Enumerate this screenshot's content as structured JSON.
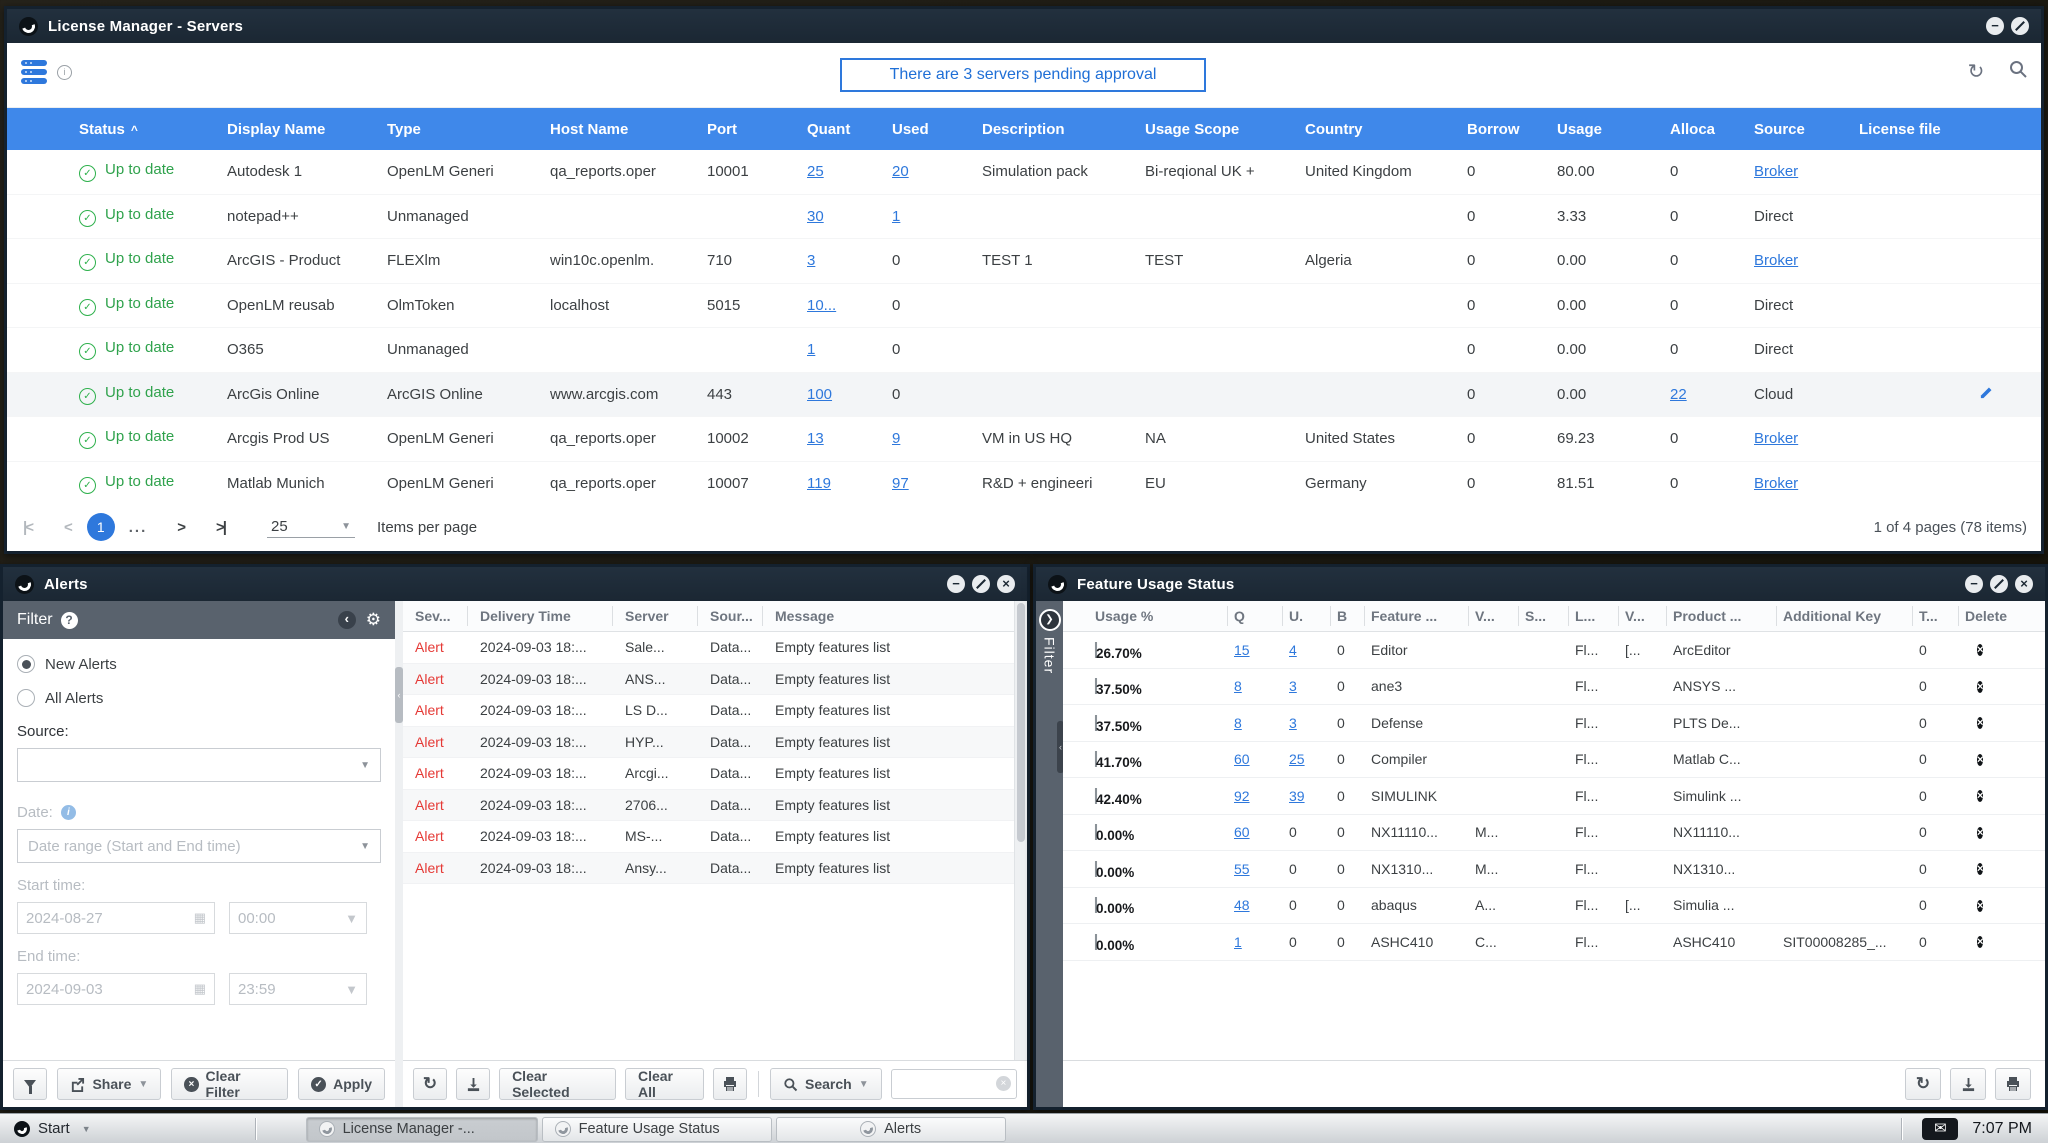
{
  "colors": {
    "header_blue": "#3f88ea",
    "link_blue": "#2e78dc",
    "ok_green": "#2fb14d",
    "alert_red": "#e53935",
    "usage_green": "#77d701"
  },
  "main_window": {
    "title": "License Manager - Servers",
    "banner": "There are 3 servers pending approval",
    "columns": [
      "Status",
      "Display Name",
      "Type",
      "Host Name",
      "Port",
      "Quant",
      "Used",
      "Description",
      "Usage Scope",
      "Country",
      "Borrow",
      "Usage",
      "Alloca",
      "Source",
      "License file"
    ],
    "rows": [
      {
        "status": "Up to date",
        "name": "Autodesk 1",
        "type": "OpenLM Generi",
        "host": "qa_reports.oper",
        "port": "10001",
        "quant": "25",
        "used": "20",
        "usedLink": true,
        "desc": "Simulation pack",
        "scope": "Bi-reqional UK +",
        "country": "United Kingdom",
        "borrow": "0",
        "usage": "80.00",
        "alloca": "0",
        "allocaLink": false,
        "source": "Broker",
        "sourceLink": true,
        "edit": false,
        "selected": false
      },
      {
        "status": "Up to date",
        "name": "notepad++",
        "type": "Unmanaged",
        "host": "",
        "port": "",
        "quant": "30",
        "used": "1",
        "usedLink": true,
        "desc": "",
        "scope": "",
        "country": "",
        "borrow": "0",
        "usage": "3.33",
        "alloca": "0",
        "allocaLink": false,
        "source": "Direct",
        "sourceLink": false,
        "edit": false,
        "selected": false
      },
      {
        "status": "Up to date",
        "name": "ArcGIS - Product",
        "type": "FLEXlm",
        "host": "win10c.openlm.",
        "port": "710",
        "quant": "3",
        "used": "0",
        "usedLink": false,
        "desc": "TEST 1",
        "scope": "TEST",
        "country": "Algeria",
        "borrow": "0",
        "usage": "0.00",
        "alloca": "0",
        "allocaLink": false,
        "source": "Broker",
        "sourceLink": true,
        "edit": false,
        "selected": false
      },
      {
        "status": "Up to date",
        "name": "OpenLM reusab",
        "type": "OlmToken",
        "host": "localhost",
        "port": "5015",
        "quant": "10...",
        "used": "0",
        "usedLink": false,
        "desc": "",
        "scope": "",
        "country": "",
        "borrow": "0",
        "usage": "0.00",
        "alloca": "0",
        "allocaLink": false,
        "source": "Direct",
        "sourceLink": false,
        "edit": false,
        "selected": false
      },
      {
        "status": "Up to date",
        "name": "O365",
        "type": "Unmanaged",
        "host": "",
        "port": "",
        "quant": "1",
        "used": "0",
        "usedLink": false,
        "desc": "",
        "scope": "",
        "country": "",
        "borrow": "0",
        "usage": "0.00",
        "alloca": "0",
        "allocaLink": false,
        "source": "Direct",
        "sourceLink": false,
        "edit": false,
        "selected": false
      },
      {
        "status": "Up to date",
        "name": "ArcGis Online",
        "type": "ArcGIS Online",
        "host": "www.arcgis.com",
        "port": "443",
        "quant": "100",
        "used": "0",
        "usedLink": false,
        "desc": "",
        "scope": "",
        "country": "",
        "borrow": "0",
        "usage": "0.00",
        "alloca": "22",
        "allocaLink": true,
        "source": "Cloud",
        "sourceLink": false,
        "edit": true,
        "selected": true
      },
      {
        "status": "Up to date",
        "name": "Arcgis Prod US",
        "type": "OpenLM Generi",
        "host": "qa_reports.oper",
        "port": "10002",
        "quant": "13",
        "used": "9",
        "usedLink": true,
        "desc": "VM in US HQ",
        "scope": "NA",
        "country": "United States",
        "borrow": "0",
        "usage": "69.23",
        "alloca": "0",
        "allocaLink": false,
        "source": "Broker",
        "sourceLink": true,
        "edit": false,
        "selected": false
      },
      {
        "status": "Up to date",
        "name": "Matlab Munich",
        "type": "OpenLM Generi",
        "host": "qa_reports.oper",
        "port": "10007",
        "quant": "119",
        "used": "97",
        "usedLink": true,
        "desc": "R&D + engineeri",
        "scope": "EU",
        "country": "Germany",
        "borrow": "0",
        "usage": "81.51",
        "alloca": "0",
        "allocaLink": false,
        "source": "Broker",
        "sourceLink": true,
        "edit": false,
        "selected": false
      }
    ],
    "pagination": {
      "page": "1",
      "ellipsis": "...",
      "per_page": "25",
      "per_page_label": "Items per page",
      "summary": "1 of 4 pages (78 items)"
    }
  },
  "alerts_window": {
    "title": "Alerts",
    "filter": {
      "header": "Filter",
      "new_alerts": "New Alerts",
      "all_alerts": "All Alerts",
      "source_label": "Source:",
      "date_label": "Date:",
      "range_placeholder": "Date range (Start and End time)",
      "start_label": "Start time:",
      "start_date": "2024-08-27",
      "start_time": "00:00",
      "end_label": "End time:",
      "end_date": "2024-09-03",
      "end_time": "23:59",
      "share": "Share",
      "clear_filter": "Clear Filter",
      "apply": "Apply"
    },
    "table": {
      "columns": [
        "Sev...",
        "Delivery Time",
        "Server",
        "Sour...",
        "Message"
      ],
      "rows": [
        {
          "sev": "Alert",
          "time": "2024-09-03 18:...",
          "server": "Sale...",
          "source": "Data...",
          "message": "Empty features list"
        },
        {
          "sev": "Alert",
          "time": "2024-09-03 18:...",
          "server": "ANS...",
          "source": "Data...",
          "message": "Empty features list"
        },
        {
          "sev": "Alert",
          "time": "2024-09-03 18:...",
          "server": "LS D...",
          "source": "Data...",
          "message": "Empty features list"
        },
        {
          "sev": "Alert",
          "time": "2024-09-03 18:...",
          "server": "HYP...",
          "source": "Data...",
          "message": "Empty features list"
        },
        {
          "sev": "Alert",
          "time": "2024-09-03 18:...",
          "server": "Arcgi...",
          "source": "Data...",
          "message": "Empty features list"
        },
        {
          "sev": "Alert",
          "time": "2024-09-03 18:...",
          "server": "2706...",
          "source": "Data...",
          "message": "Empty features list"
        },
        {
          "sev": "Alert",
          "time": "2024-09-03 18:...",
          "server": "MS-...",
          "source": "Data...",
          "message": "Empty features list"
        },
        {
          "sev": "Alert",
          "time": "2024-09-03 18:...",
          "server": "Ansy...",
          "source": "Data...",
          "message": "Empty features list"
        }
      ]
    },
    "toolbar": {
      "clear_selected": "Clear Selected",
      "clear_all": "Clear All",
      "search": "Search"
    }
  },
  "feature_window": {
    "title": "Feature Usage Status",
    "filter_tab": "Filter",
    "columns": [
      "Usage %",
      "Q",
      "U.",
      "B",
      "Feature ...",
      "V...",
      "S...",
      "L...",
      "V...",
      "Product ...",
      "Additional Key",
      "T...",
      "Delete"
    ],
    "rows": [
      {
        "pct": "26.70%",
        "fill": 26.7,
        "q": "15",
        "u": "4",
        "uLink": true,
        "b": "0",
        "feature": "Editor",
        "v1": "",
        "s": "",
        "l": "Fl...",
        "v2": "[...",
        "product": "ArcEditor",
        "addkey": "",
        "t": "0"
      },
      {
        "pct": "37.50%",
        "fill": 37.5,
        "q": "8",
        "u": "3",
        "uLink": true,
        "b": "0",
        "feature": "ane3",
        "v1": "",
        "s": "",
        "l": "Fl...",
        "v2": "",
        "product": "ANSYS ...",
        "addkey": "",
        "t": "0"
      },
      {
        "pct": "37.50%",
        "fill": 37.5,
        "q": "8",
        "u": "3",
        "uLink": true,
        "b": "0",
        "feature": "Defense",
        "v1": "",
        "s": "",
        "l": "Fl...",
        "v2": "",
        "product": "PLTS De...",
        "addkey": "",
        "t": "0"
      },
      {
        "pct": "41.70%",
        "fill": 41.7,
        "q": "60",
        "u": "25",
        "uLink": true,
        "b": "0",
        "feature": "Compiler",
        "v1": "",
        "s": "",
        "l": "Fl...",
        "v2": "",
        "product": "Matlab C...",
        "addkey": "",
        "t": "0"
      },
      {
        "pct": "42.40%",
        "fill": 42.4,
        "q": "92",
        "u": "39",
        "uLink": true,
        "b": "0",
        "feature": "SIMULINK",
        "v1": "",
        "s": "",
        "l": "Fl...",
        "v2": "",
        "product": "Simulink ...",
        "addkey": "",
        "t": "0"
      },
      {
        "pct": "0.00%",
        "fill": 0,
        "q": "60",
        "u": "0",
        "uLink": false,
        "b": "0",
        "feature": "NX11110...",
        "v1": "M...",
        "s": "",
        "l": "Fl...",
        "v2": "",
        "product": "NX11110...",
        "addkey": "",
        "t": "0"
      },
      {
        "pct": "0.00%",
        "fill": 0,
        "q": "55",
        "u": "0",
        "uLink": false,
        "b": "0",
        "feature": "NX1310...",
        "v1": "M...",
        "s": "",
        "l": "Fl...",
        "v2": "",
        "product": "NX1310...",
        "addkey": "",
        "t": "0"
      },
      {
        "pct": "0.00%",
        "fill": 0,
        "q": "48",
        "u": "0",
        "uLink": false,
        "b": "0",
        "feature": "abaqus",
        "v1": "A...",
        "s": "",
        "l": "Fl...",
        "v2": "[...",
        "product": "Simulia ...",
        "addkey": "",
        "t": "0"
      },
      {
        "pct": "0.00%",
        "fill": 0,
        "q": "1",
        "u": "0",
        "uLink": false,
        "b": "0",
        "feature": "ASHC410",
        "v1": "C...",
        "s": "",
        "l": "Fl...",
        "v2": "",
        "product": "ASHC410",
        "addkey": "SIT00008285_...",
        "t": "0"
      }
    ]
  },
  "taskbar": {
    "start": "Start",
    "tasks": [
      {
        "label": "License Manager -...",
        "active": true
      },
      {
        "label": "Feature Usage Status",
        "active": false
      },
      {
        "label": "Alerts",
        "active": false
      }
    ],
    "clock": "7:07 PM"
  }
}
